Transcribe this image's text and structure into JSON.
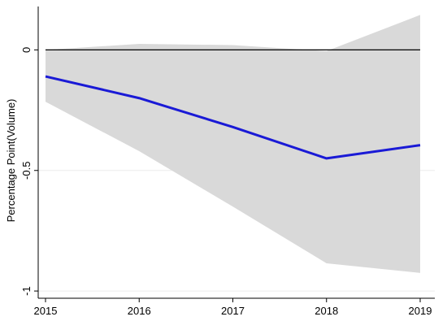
{
  "chart_data": {
    "type": "line",
    "title": "",
    "xlabel": "",
    "ylabel": "Percentage Point(Volume)",
    "x": [
      2015,
      2016,
      2017,
      2018,
      2019
    ],
    "x_ticks": [
      2015,
      2016,
      2017,
      2018,
      2019
    ],
    "y_ticks": [
      0,
      -0.5,
      -1
    ],
    "y_tick_labels": [
      "0",
      "-0.5",
      "-1"
    ],
    "ylim": [
      -1.03,
      0.18
    ],
    "xlim": [
      2015,
      2019
    ],
    "grid": "horizontal",
    "legend": "none",
    "reference_line": 0,
    "series": [
      {
        "kind": "band",
        "upper": [
          0.0,
          0.025,
          0.02,
          -0.005,
          0.145
        ],
        "lower": [
          -0.215,
          -0.42,
          -0.65,
          -0.885,
          -0.925
        ]
      },
      {
        "kind": "line",
        "values": [
          -0.11,
          -0.2,
          -0.32,
          -0.45,
          -0.395
        ]
      }
    ],
    "colors": {
      "band": "#d9d9d9",
      "line": "#1a1ad6",
      "reference": "#000000",
      "grid": "#ececec",
      "axis": "#000000"
    }
  }
}
